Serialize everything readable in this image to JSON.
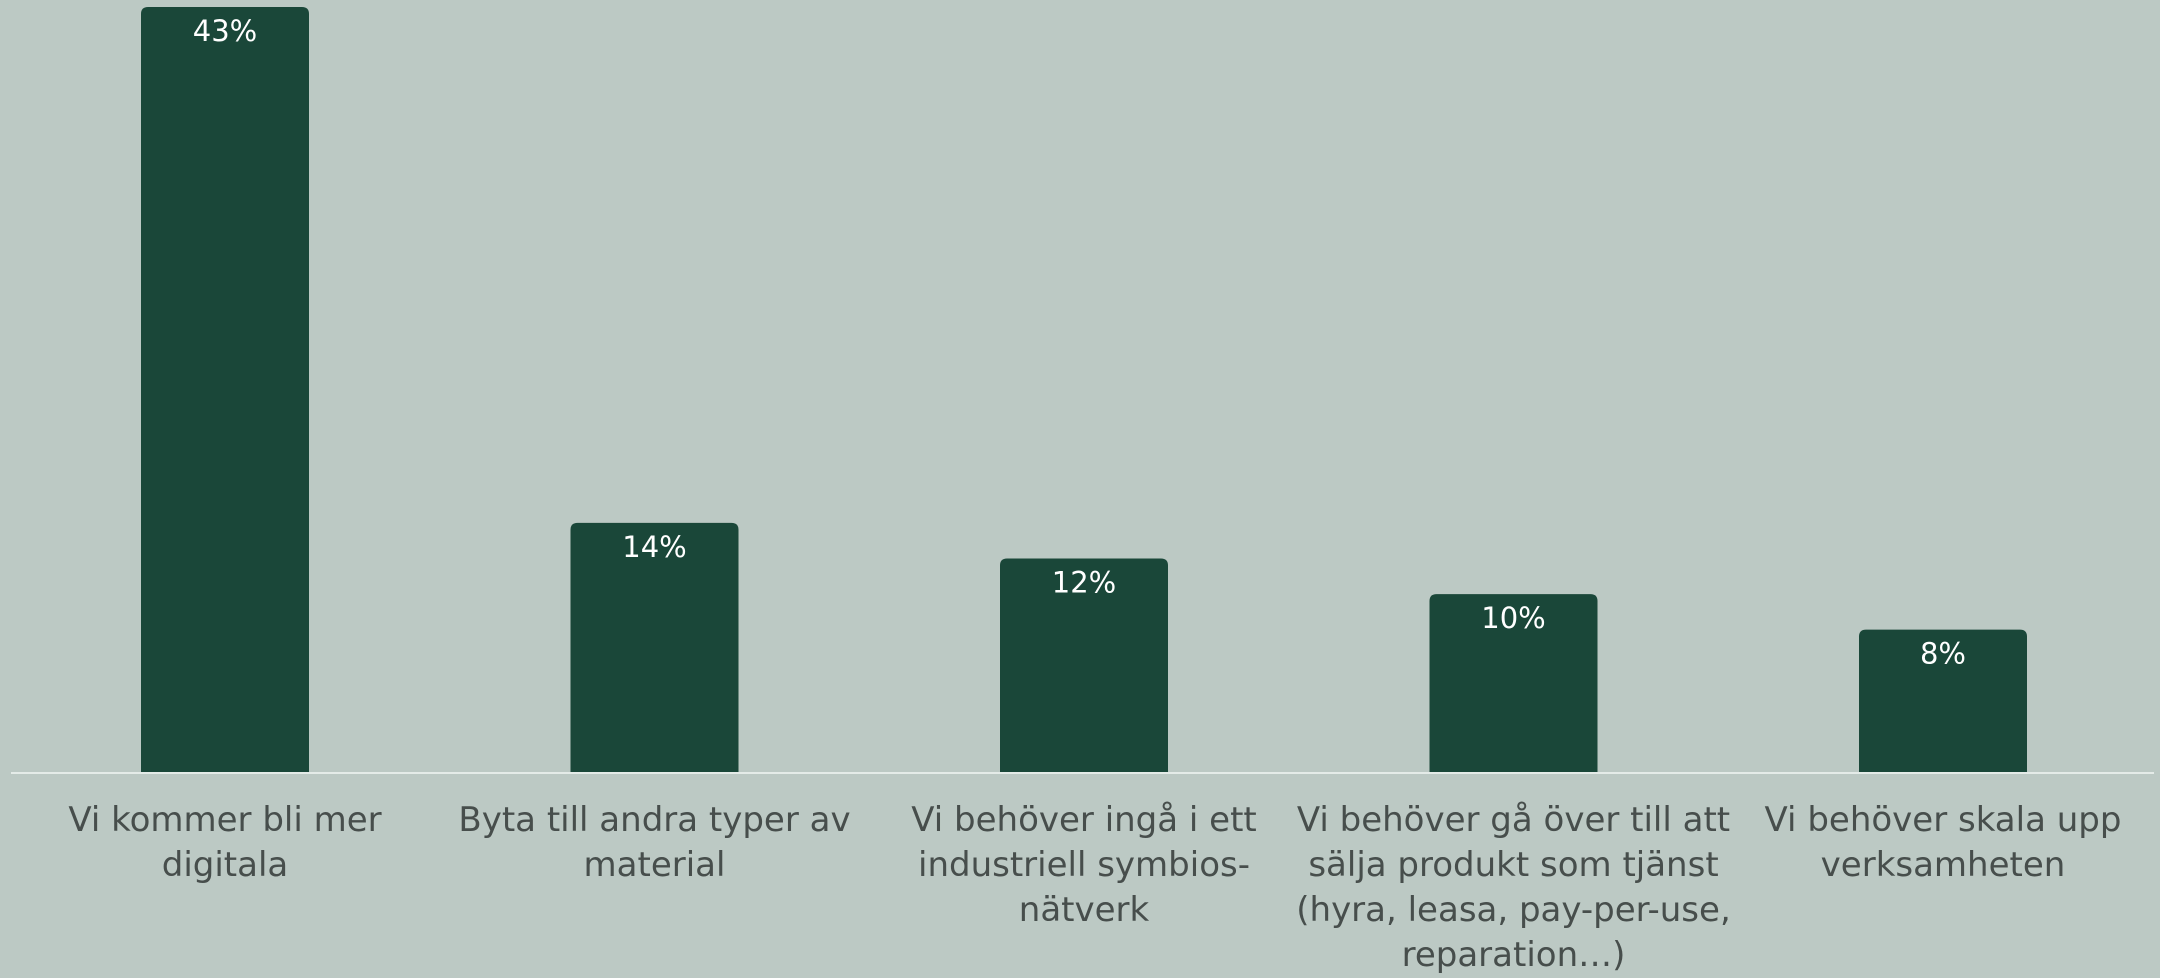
{
  "chart_data": {
    "type": "bar",
    "categories": [
      "Vi kommer bli mer digitala",
      "Byta till andra typer av material",
      "Vi behöver ingå i ett industriell symbios-nätverk",
      "Vi behöver gå över till att sälja produkt som tjänst (hyra, leasa, pay-per-use, reparation…)",
      "Vi behöver skala upp verksamheten"
    ],
    "values": [
      43,
      14,
      12,
      10,
      8
    ],
    "value_labels": [
      "43%",
      "14%",
      "12%",
      "10%",
      "8%"
    ],
    "color": "#1a4739"
  }
}
